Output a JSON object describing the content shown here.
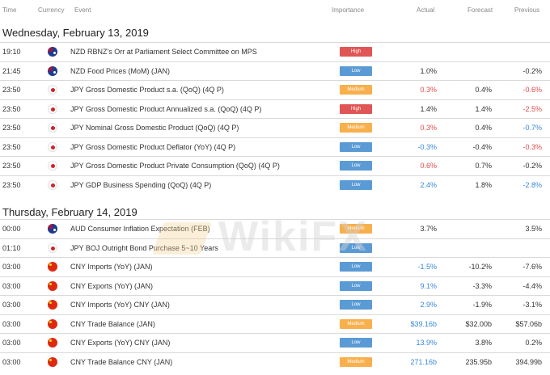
{
  "header": {
    "time": "Time",
    "currency": "Currency",
    "event": "Event",
    "importance": "Importance",
    "actual": "Actual",
    "forecast": "Forecast",
    "previous": "Previous"
  },
  "watermark": "WikiFX",
  "groups": [
    {
      "date": "Wednesday, February 13, 2019",
      "rows": [
        {
          "time": "19:10",
          "flag": "nz",
          "event": "NZD RBNZ's Orr at Parliament Select Committee on MPS",
          "importance": "High",
          "level": "high",
          "actual": "",
          "actual_tone": "neutral",
          "forecast": "",
          "previous": "",
          "previous_tone": "neutral"
        },
        {
          "time": "21:45",
          "flag": "nz",
          "event": "NZD Food Prices (MoM) (JAN)",
          "importance": "Low",
          "level": "low",
          "actual": "1.0%",
          "actual_tone": "neutral",
          "forecast": "",
          "previous": "-0.2%",
          "previous_tone": "neutral"
        },
        {
          "time": "23:50",
          "flag": "jp",
          "event": "JPY Gross Domestic Product s.a. (QoQ) (4Q P)",
          "importance": "Medium",
          "level": "medium",
          "actual": "0.3%",
          "actual_tone": "neg",
          "forecast": "0.4%",
          "previous": "-0.6%",
          "previous_tone": "neg"
        },
        {
          "time": "23:50",
          "flag": "jp",
          "event": "JPY Gross Domestic Product Annualized s.a. (QoQ) (4Q P)",
          "importance": "High",
          "level": "high",
          "actual": "1.4%",
          "actual_tone": "neutral",
          "forecast": "1.4%",
          "previous": "-2.5%",
          "previous_tone": "neg"
        },
        {
          "time": "23:50",
          "flag": "jp",
          "event": "JPY Nominal Gross Domestic Product (QoQ) (4Q P)",
          "importance": "Medium",
          "level": "medium",
          "actual": "0.3%",
          "actual_tone": "neg",
          "forecast": "0.4%",
          "previous": "-0.7%",
          "previous_tone": "pos"
        },
        {
          "time": "23:50",
          "flag": "jp",
          "event": "JPY Gross Domestic Product Deflator (YoY) (4Q P)",
          "importance": "Low",
          "level": "low",
          "actual": "-0.3%",
          "actual_tone": "pos",
          "forecast": "-0.4%",
          "previous": "-0.3%",
          "previous_tone": "neg"
        },
        {
          "time": "23:50",
          "flag": "jp",
          "event": "JPY Gross Domestic Product Private Consumption (QoQ) (4Q P)",
          "importance": "Low",
          "level": "low",
          "actual": "0.6%",
          "actual_tone": "neg",
          "forecast": "0.7%",
          "previous": "-0.2%",
          "previous_tone": "neutral"
        },
        {
          "time": "23:50",
          "flag": "jp",
          "event": "JPY GDP Business Spending (QoQ) (4Q P)",
          "importance": "Low",
          "level": "low",
          "actual": "2.4%",
          "actual_tone": "pos",
          "forecast": "1.8%",
          "previous": "-2.8%",
          "previous_tone": "pos"
        }
      ]
    },
    {
      "date": "Thursday, February 14, 2019",
      "rows": [
        {
          "time": "00:00",
          "flag": "au",
          "event": "AUD Consumer Inflation Expectation (FEB)",
          "importance": "Medium",
          "level": "medium",
          "actual": "3.7%",
          "actual_tone": "neutral",
          "forecast": "",
          "previous": "3.5%",
          "previous_tone": "neutral"
        },
        {
          "time": "01:10",
          "flag": "jp",
          "event": "JPY BOJ Outright Bond Purchase 5~10 Years",
          "importance": "Low",
          "level": "low",
          "actual": "",
          "actual_tone": "neutral",
          "forecast": "",
          "previous": "",
          "previous_tone": "neutral"
        },
        {
          "time": "03:00",
          "flag": "cn",
          "event": "CNY Imports (YoY) (JAN)",
          "importance": "Low",
          "level": "low",
          "actual": "-1.5%",
          "actual_tone": "pos",
          "forecast": "-10.2%",
          "previous": "-7.6%",
          "previous_tone": "neutral"
        },
        {
          "time": "03:00",
          "flag": "cn",
          "event": "CNY Exports (YoY) (JAN)",
          "importance": "Low",
          "level": "low",
          "actual": "9.1%",
          "actual_tone": "pos",
          "forecast": "-3.3%",
          "previous": "-4.4%",
          "previous_tone": "neutral"
        },
        {
          "time": "03:00",
          "flag": "cn",
          "event": "CNY Imports (YoY) CNY (JAN)",
          "importance": "Low",
          "level": "low",
          "actual": "2.9%",
          "actual_tone": "pos",
          "forecast": "-1.9%",
          "previous": "-3.1%",
          "previous_tone": "neutral"
        },
        {
          "time": "03:00",
          "flag": "cn",
          "event": "CNY Trade Balance (JAN)",
          "importance": "Medium",
          "level": "medium",
          "actual": "$39.16b",
          "actual_tone": "pos",
          "forecast": "$32.00b",
          "previous": "$57.06b",
          "previous_tone": "neutral"
        },
        {
          "time": "03:00",
          "flag": "cn",
          "event": "CNY Exports (YoY) CNY (JAN)",
          "importance": "Low",
          "level": "low",
          "actual": "13.9%",
          "actual_tone": "pos",
          "forecast": "3.8%",
          "previous": "0.2%",
          "previous_tone": "neutral"
        },
        {
          "time": "03:00",
          "flag": "cn",
          "event": "CNY Trade Balance CNY (JAN)",
          "importance": "Medium",
          "level": "medium",
          "actual": "271.16b",
          "actual_tone": "pos",
          "forecast": "235.95b",
          "previous": "394.99b",
          "previous_tone": "neutral"
        }
      ]
    }
  ]
}
